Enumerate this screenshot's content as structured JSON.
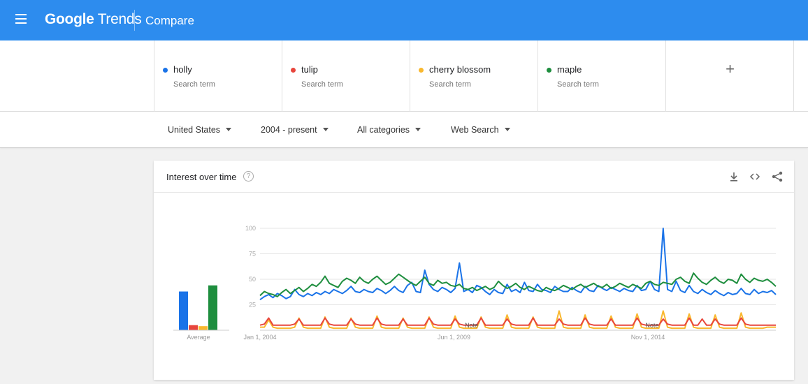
{
  "header": {
    "logo_bold": "Google",
    "logo_rest": "Trends",
    "title": "Compare"
  },
  "terms": [
    {
      "name": "holly",
      "sub": "Search term",
      "color": "#1a73e8"
    },
    {
      "name": "tulip",
      "sub": "Search term",
      "color": "#e8453c"
    },
    {
      "name": "cherry blossom",
      "sub": "Search term",
      "color": "#f9b82e"
    },
    {
      "name": "maple",
      "sub": "Search term",
      "color": "#1e8e3e"
    }
  ],
  "add_term_label": "+",
  "filters": {
    "region": "United States",
    "time": "2004 - present",
    "category": "All categories",
    "search_type": "Web Search"
  },
  "card": {
    "title": "Interest over time",
    "help": "?"
  },
  "chart_data": {
    "type": "line",
    "yticks": [
      25,
      50,
      75,
      100
    ],
    "ylim": [
      0,
      100
    ],
    "xtick_labels": [
      "Jan 1, 2004",
      "Jun 1, 2009",
      "Nov 1, 2014"
    ],
    "average_label": "Average",
    "notes": [
      "Note",
      "Note"
    ],
    "averages": {
      "holly": 38,
      "tulip": 5,
      "cherry blossom": 4,
      "maple": 44
    },
    "series": [
      {
        "name": "holly",
        "color": "#1a73e8",
        "values": [
          30,
          33,
          35,
          32,
          36,
          34,
          31,
          33,
          40,
          35,
          33,
          36,
          34,
          37,
          35,
          38,
          36,
          40,
          38,
          36,
          39,
          43,
          38,
          37,
          40,
          38,
          37,
          41,
          39,
          36,
          39,
          43,
          39,
          37,
          44,
          47,
          38,
          37,
          59,
          45,
          40,
          38,
          42,
          40,
          37,
          41,
          66,
          38,
          40,
          37,
          44,
          42,
          38,
          35,
          40,
          37,
          36,
          45,
          38,
          40,
          37,
          47,
          39,
          38,
          45,
          40,
          39,
          37,
          43,
          40,
          38,
          38,
          42,
          39,
          37,
          43,
          39,
          38,
          44,
          41,
          39,
          42,
          40,
          38,
          41,
          39,
          38,
          44,
          39,
          40,
          48,
          40,
          38,
          100,
          40,
          38,
          48,
          39,
          37,
          44,
          38,
          36,
          40,
          37,
          35,
          39,
          36,
          34,
          37,
          35,
          36,
          41,
          36,
          35,
          40,
          36,
          38,
          37,
          39,
          35
        ]
      },
      {
        "name": "tulip",
        "color": "#e8453c",
        "values": [
          5,
          6,
          12,
          5,
          5,
          5,
          5,
          5,
          6,
          11,
          5,
          5,
          5,
          5,
          5,
          12,
          6,
          5,
          5,
          5,
          5,
          11,
          6,
          5,
          5,
          5,
          5,
          12,
          6,
          5,
          5,
          5,
          5,
          11,
          5,
          5,
          5,
          5,
          5,
          12,
          6,
          5,
          5,
          5,
          5,
          11,
          6,
          5,
          5,
          5,
          5,
          12,
          5,
          5,
          5,
          5,
          5,
          11,
          6,
          5,
          5,
          5,
          5,
          12,
          5,
          5,
          5,
          5,
          5,
          11,
          6,
          5,
          5,
          5,
          5,
          12,
          6,
          5,
          5,
          5,
          5,
          11,
          5,
          5,
          5,
          5,
          5,
          12,
          6,
          5,
          5,
          5,
          5,
          11,
          6,
          5,
          5,
          5,
          5,
          12,
          5,
          5,
          11,
          5,
          5,
          11,
          6,
          5,
          5,
          5,
          5,
          12,
          6,
          5,
          5,
          5,
          5,
          5,
          5,
          5
        ]
      },
      {
        "name": "cherry blossom",
        "color": "#f9b82e",
        "values": [
          3,
          3,
          10,
          3,
          2,
          2,
          2,
          2,
          3,
          12,
          3,
          2,
          2,
          2,
          2,
          13,
          3,
          2,
          2,
          2,
          2,
          12,
          3,
          2,
          2,
          2,
          2,
          14,
          3,
          2,
          2,
          2,
          2,
          12,
          3,
          2,
          2,
          2,
          2,
          13,
          3,
          2,
          2,
          2,
          2,
          14,
          3,
          2,
          2,
          2,
          2,
          13,
          3,
          2,
          2,
          2,
          2,
          15,
          3,
          2,
          2,
          2,
          2,
          13,
          3,
          2,
          2,
          2,
          2,
          19,
          3,
          2,
          2,
          2,
          2,
          15,
          3,
          2,
          2,
          2,
          2,
          14,
          3,
          2,
          2,
          2,
          2,
          16,
          3,
          2,
          2,
          2,
          2,
          19,
          3,
          2,
          2,
          2,
          2,
          16,
          3,
          2,
          2,
          2,
          2,
          15,
          3,
          2,
          2,
          2,
          2,
          17,
          3,
          2,
          2,
          2,
          2,
          3,
          3,
          3
        ]
      },
      {
        "name": "maple",
        "color": "#1e8e3e",
        "values": [
          34,
          38,
          36,
          35,
          33,
          37,
          40,
          36,
          39,
          42,
          38,
          41,
          45,
          43,
          47,
          53,
          46,
          44,
          42,
          48,
          51,
          49,
          46,
          52,
          48,
          46,
          50,
          53,
          49,
          45,
          47,
          51,
          55,
          52,
          49,
          46,
          44,
          48,
          52,
          46,
          44,
          49,
          46,
          47,
          44,
          43,
          45,
          41,
          40,
          42,
          39,
          41,
          43,
          40,
          42,
          48,
          44,
          41,
          43,
          46,
          42,
          40,
          43,
          41,
          39,
          38,
          42,
          40,
          39,
          41,
          44,
          42,
          40,
          43,
          45,
          42,
          44,
          46,
          43,
          42,
          45,
          41,
          43,
          46,
          44,
          42,
          45,
          43,
          41,
          46,
          48,
          45,
          44,
          47,
          46,
          45,
          50,
          52,
          48,
          46,
          56,
          51,
          47,
          45,
          49,
          52,
          48,
          46,
          50,
          49,
          46,
          55,
          50,
          47,
          51,
          49,
          48,
          50,
          47,
          43
        ]
      }
    ]
  }
}
